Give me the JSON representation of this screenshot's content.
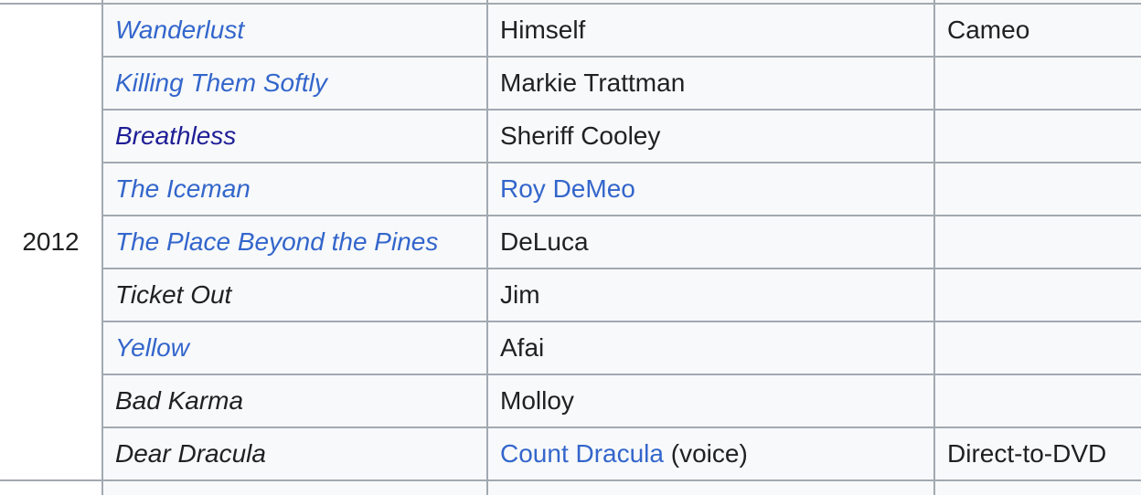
{
  "colors": {
    "cell_bg": "#f8f9fa",
    "year_bg": "#ffffff",
    "border": "#a2a9b1",
    "text": "#202122",
    "link": "#3366cc",
    "visited_link": "#1e1e96"
  },
  "table": {
    "year": "2012",
    "rows": [
      {
        "title": "Wanderlust",
        "title_style": "link",
        "role": [
          {
            "text": "Himself",
            "link": false
          }
        ],
        "note": "Cameo"
      },
      {
        "title": "Killing Them Softly",
        "title_style": "link",
        "role": [
          {
            "text": "Markie Trattman",
            "link": false
          }
        ],
        "note": ""
      },
      {
        "title": "Breathless",
        "title_style": "visited",
        "role": [
          {
            "text": "Sheriff Cooley",
            "link": false
          }
        ],
        "note": ""
      },
      {
        "title": "The Iceman",
        "title_style": "link",
        "role": [
          {
            "text": "Roy DeMeo",
            "link": true
          }
        ],
        "note": ""
      },
      {
        "title": "The Place Beyond the Pines",
        "title_style": "link",
        "role": [
          {
            "text": "DeLuca",
            "link": false
          }
        ],
        "note": ""
      },
      {
        "title": "Ticket Out",
        "title_style": "none",
        "role": [
          {
            "text": "Jim",
            "link": false
          }
        ],
        "note": ""
      },
      {
        "title": "Yellow",
        "title_style": "link",
        "role": [
          {
            "text": "Afai",
            "link": false
          }
        ],
        "note": ""
      },
      {
        "title": "Bad Karma",
        "title_style": "none",
        "role": [
          {
            "text": "Molloy",
            "link": false
          }
        ],
        "note": ""
      },
      {
        "title": "Dear Dracula",
        "title_style": "none",
        "role": [
          {
            "text": "Count Dracula",
            "link": true
          },
          {
            "text": " (voice)",
            "link": false
          }
        ],
        "note": "Direct-to-DVD"
      }
    ]
  }
}
